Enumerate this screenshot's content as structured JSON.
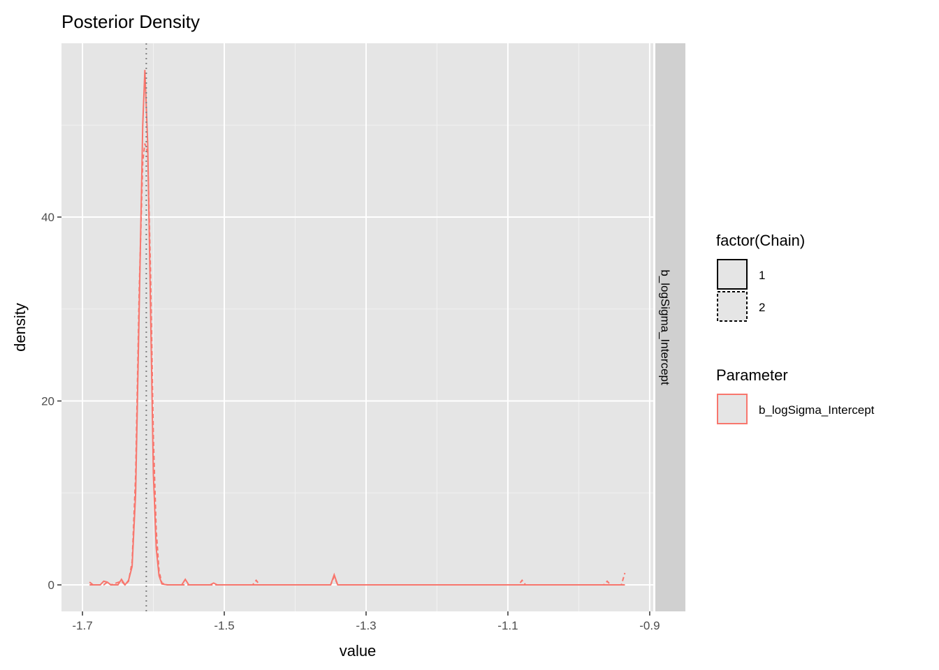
{
  "chart_data": {
    "type": "line",
    "title": "Posterior Density",
    "x_label": "value",
    "y_label": "density",
    "facet_label": "b_logSigma_Intercept",
    "color": "#F8766D",
    "linetype_legend_title": "factor(Chain)",
    "color_legend": {
      "title": "Parameter",
      "entries": [
        "b_logSigma_Intercept"
      ]
    },
    "xlim": [
      -1.7296,
      -0.895
    ],
    "ylim": [
      -2.88,
      58.9
    ],
    "xticks": [
      -1.7,
      -1.5,
      -1.3,
      -1.1,
      -0.9
    ],
    "yticks": [
      0,
      20,
      40
    ],
    "xminor": [
      -1.6,
      -1.4,
      -1.2,
      -1.0
    ],
    "yminor": [
      10,
      30,
      50
    ],
    "grid": true,
    "vline": -1.61,
    "series": [
      {
        "name": "1",
        "dash": "solid",
        "x": [
          -1.69,
          -1.685,
          -1.675,
          -1.67,
          -1.665,
          -1.66,
          -1.65,
          -1.645,
          -1.64,
          -1.635,
          -1.63,
          -1.625,
          -1.62,
          -1.615,
          -1.612,
          -1.608,
          -1.604,
          -1.6,
          -1.596,
          -1.592,
          -1.588,
          -1.58,
          -1.56,
          -1.555,
          -1.55,
          -1.52,
          -1.515,
          -1.51,
          -1.35,
          -1.345,
          -1.34,
          -0.935
        ],
        "values": [
          0.3,
          0,
          0,
          0.4,
          0.3,
          0,
          0,
          0.6,
          0,
          0.5,
          2,
          10,
          30,
          50,
          56,
          48,
          30,
          12,
          4,
          1,
          0.1,
          0,
          0,
          0.6,
          0,
          0,
          0.2,
          0,
          0,
          1.1,
          0,
          0
        ]
      },
      {
        "name": "2",
        "dash": "dashed",
        "x": [
          -1.69,
          -1.67,
          -1.665,
          -1.66,
          -1.645,
          -1.64,
          -1.635,
          -1.63,
          -1.625,
          -1.62,
          -1.615,
          -1.612,
          -1.608,
          -1.604,
          -1.6,
          -1.596,
          -1.592,
          -1.588,
          -1.58,
          -1.46,
          -1.455,
          -1.45,
          -1.35,
          -1.345,
          -1.34,
          -1.085,
          -1.08,
          -1.075,
          -0.965,
          -0.96,
          -0.955,
          -0.94,
          -0.935
        ],
        "values": [
          0,
          0,
          0.3,
          0,
          0.4,
          0,
          0.4,
          2.5,
          12,
          32,
          46,
          48,
          47,
          34,
          16,
          6,
          1.5,
          0.2,
          0,
          0,
          0.5,
          0,
          0,
          0.9,
          0,
          0,
          0.5,
          0,
          0,
          0.4,
          0,
          0,
          1.3
        ]
      }
    ]
  }
}
